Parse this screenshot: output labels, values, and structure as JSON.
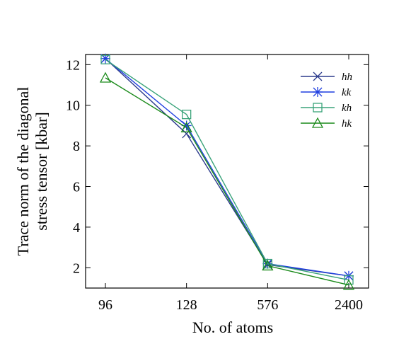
{
  "chart_data": {
    "type": "line",
    "categories": [
      "96",
      "128",
      "576",
      "2400"
    ],
    "xlabel": "No. of atoms",
    "ylabel_lines": [
      "Trace norm of the diagonal",
      "stress tensor [kbar]"
    ],
    "yticks": [
      "2",
      "4",
      "6",
      "8",
      "10",
      "12"
    ],
    "ylim": [
      1,
      12.5
    ],
    "grid": false,
    "legend_position": "top-right",
    "series": [
      {
        "name": "hh",
        "values": [
          12.3,
          8.6,
          2.15,
          1.6
        ],
        "color": "#2b3a8c",
        "marker": "x"
      },
      {
        "name": "kk",
        "values": [
          12.3,
          9.0,
          2.2,
          1.6
        ],
        "color": "#1f3fe0",
        "marker": "asterisk"
      },
      {
        "name": "kh",
        "values": [
          12.25,
          9.55,
          2.2,
          1.4
        ],
        "color": "#3aa37a",
        "marker": "square"
      },
      {
        "name": "hk",
        "values": [
          11.35,
          8.9,
          2.1,
          1.15
        ],
        "color": "#1a8a1a",
        "marker": "triangle"
      }
    ]
  }
}
